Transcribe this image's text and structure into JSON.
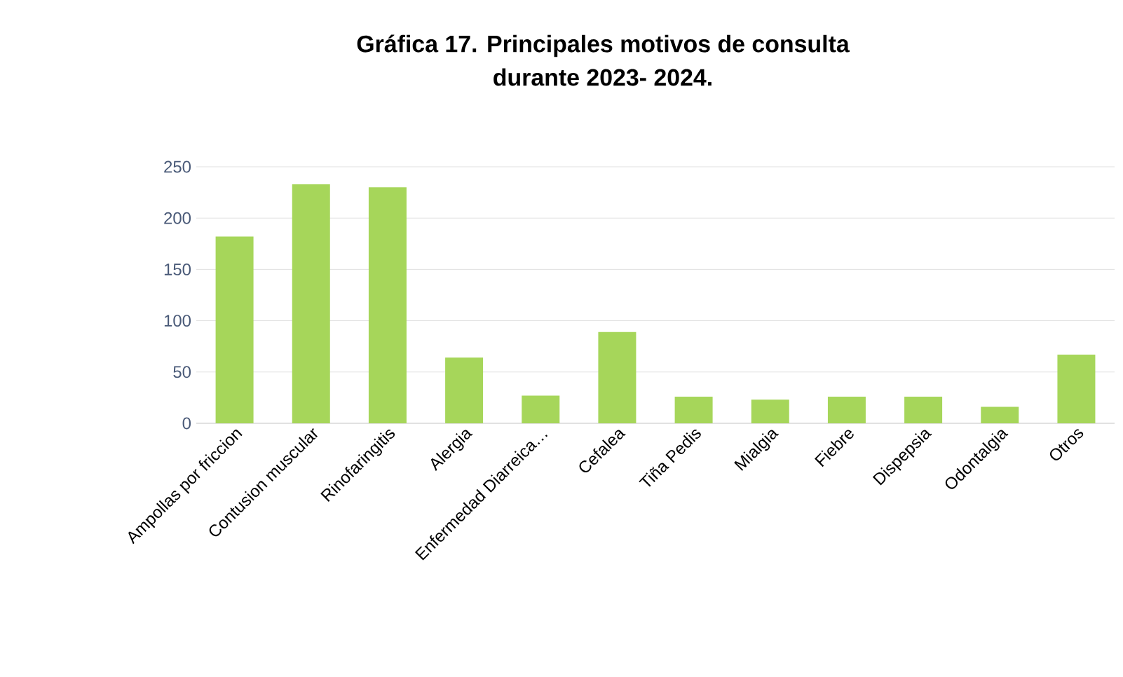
{
  "chart_data": {
    "type": "bar",
    "title": "Gráfica 17. Principales motivos de consulta\ndurante 2023- 2024.",
    "categories": [
      "Ampollas por friccion",
      "Contusion muscular",
      "Rinofaringitis",
      "Alergia",
      "Enfermedad Diarreica…",
      "Cefalea",
      "Tiña Pedis",
      "Mialgia",
      "Fiebre",
      "Dispepsia",
      "Odontalgia",
      "Otros"
    ],
    "values": [
      182,
      233,
      230,
      64,
      27,
      89,
      26,
      23,
      26,
      26,
      16,
      67
    ],
    "color": "#a6d65a",
    "ylim": [
      0,
      250
    ],
    "yticks": [
      0,
      50,
      100,
      150,
      200,
      250
    ],
    "grid": "y"
  }
}
